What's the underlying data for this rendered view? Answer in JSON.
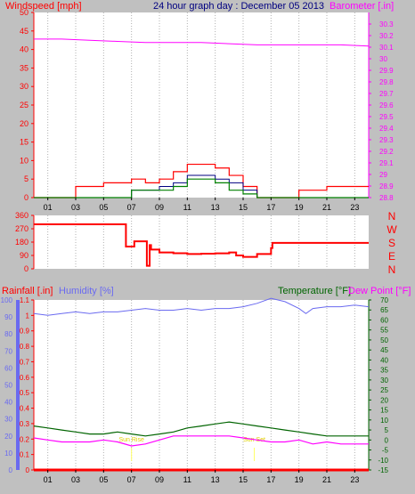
{
  "header": {
    "left_title": "Windspeed [mph]",
    "center_title": "24 hour graph day : December 05 2013",
    "right_title": "Barometer [.in]"
  },
  "colors": {
    "background": "#c0c0c0",
    "plot_bg": "#ffffff",
    "wind": "#ff0000",
    "wind_avg": "#000080",
    "wind_gust": "#008000",
    "barometer": "#ff00ff",
    "title_blue": "#000080",
    "grid": "#b0b0b0",
    "rain": "#ff0000",
    "humidity": "#6a6af0",
    "temperature": "#006400",
    "dewpoint": "#ff00ff",
    "marker": "#ffff66"
  },
  "time_ticks": [
    "01",
    "03",
    "05",
    "07",
    "09",
    "11",
    "13",
    "15",
    "17",
    "19",
    "21",
    "23"
  ],
  "time_ticks_bottom": [
    "01",
    "03",
    "05",
    "07",
    "09",
    "11",
    "13",
    "15",
    "17",
    "19",
    "21",
    "23"
  ],
  "chart_data": [
    {
      "type": "line",
      "name": "wind_and_barometer",
      "left_axis": {
        "label": "Windspeed [mph]",
        "ylim": [
          0,
          50
        ],
        "ticks": [
          "0",
          "5",
          "10",
          "15",
          "20",
          "25",
          "30",
          "35",
          "40",
          "45",
          "50"
        ]
      },
      "right_axis": {
        "label": "Barometer [.in]",
        "ylim": [
          28.8,
          30.4
        ],
        "ticks": [
          "28.8",
          "28.9",
          "29",
          "29.1",
          "29.2",
          "29.3",
          "29.4",
          "29.5",
          "29.6",
          "29.7",
          "29.8",
          "29.9",
          "30",
          "30.1",
          "30.2",
          "30.3"
        ]
      },
      "barometer": {
        "x": [
          0,
          2,
          4,
          6,
          8,
          10,
          12,
          14,
          16,
          18,
          20,
          22,
          24
        ],
        "y": [
          30.17,
          30.17,
          30.16,
          30.15,
          30.14,
          30.14,
          30.14,
          30.13,
          30.12,
          30.12,
          30.12,
          30.12,
          30.11
        ]
      },
      "wind_gust": {
        "x": [
          0,
          2.5,
          3,
          4,
          5,
          6,
          7,
          8,
          9,
          10,
          11,
          12,
          13,
          14,
          15,
          16,
          18,
          19,
          20,
          21,
          22,
          23,
          24
        ],
        "y": [
          0,
          0,
          3,
          3,
          4,
          4,
          5,
          4,
          5,
          7,
          9,
          9,
          8,
          6,
          3,
          0,
          0,
          2,
          2,
          3,
          3,
          3,
          3
        ]
      },
      "wind_avg": {
        "x": [
          0,
          6,
          7,
          8,
          9,
          10,
          11,
          12,
          13,
          14,
          15,
          16,
          24
        ],
        "y": [
          0,
          0,
          2,
          2,
          3,
          4,
          6,
          6,
          5,
          4,
          2,
          0,
          0
        ]
      },
      "wind_speed": {
        "x": [
          0,
          6.5,
          7,
          8,
          9,
          10,
          11,
          12,
          13,
          14,
          15,
          16,
          24
        ],
        "y": [
          0,
          0,
          2,
          2,
          2,
          3,
          5,
          5,
          4,
          2,
          1,
          0,
          0
        ]
      }
    },
    {
      "type": "line",
      "name": "wind_direction",
      "left_axis": {
        "ylim": [
          0,
          360
        ],
        "ticks": [
          "0",
          "90",
          "180",
          "270",
          "360"
        ]
      },
      "right_axis": {
        "ticks": [
          "N",
          "W",
          "S",
          "E",
          "N"
        ]
      },
      "direction": {
        "x": [
          0,
          6.5,
          6.6,
          7,
          7.2,
          8,
          8.1,
          8.3,
          8.4,
          9,
          10,
          11,
          12,
          13,
          14,
          14.5,
          15,
          16,
          17,
          17.1,
          24
        ],
        "y": [
          300,
          300,
          150,
          150,
          185,
          185,
          20,
          160,
          130,
          110,
          105,
          100,
          102,
          104,
          110,
          90,
          80,
          100,
          140,
          175,
          175
        ]
      }
    },
    {
      "type": "line",
      "name": "rain_humidity_temperature",
      "left_axis": {
        "label": "Rainfall [.in]",
        "ylim": [
          0,
          1.1
        ],
        "ticks": [
          "0",
          "0.1",
          "0.2",
          "0.3",
          "0.4",
          "0.5",
          "0.6",
          "0.7",
          "0.8",
          "0.9",
          "1",
          "1.1"
        ]
      },
      "humidity_axis": {
        "label": "Humidity [%]",
        "ylim": [
          0,
          100
        ],
        "ticks": [
          "0",
          "10",
          "20",
          "30",
          "40",
          "50",
          "60",
          "70",
          "80",
          "90",
          "100"
        ]
      },
      "right_axis": {
        "label": "Temperature [°F]",
        "label2": "Dew Point [°F]",
        "ylim": [
          -15,
          70
        ],
        "ticks": [
          "-15",
          "-10",
          "-5",
          "0",
          "5",
          "10",
          "15",
          "20",
          "25",
          "30",
          "35",
          "40",
          "45",
          "50",
          "55",
          "60",
          "65",
          "70"
        ]
      },
      "humidity": {
        "x": [
          0,
          1,
          2,
          3,
          4,
          5,
          6,
          7,
          8,
          9,
          10,
          11,
          12,
          13,
          14,
          15,
          16,
          17,
          18,
          19,
          19.5,
          20,
          21,
          22,
          23,
          24
        ],
        "y": [
          92,
          91,
          92,
          93,
          92,
          93,
          93,
          94,
          95,
          94,
          94,
          95,
          94,
          95,
          95,
          96,
          98,
          101,
          99,
          95,
          92,
          95,
          96,
          96,
          97,
          96
        ]
      },
      "temperature": {
        "x": [
          0,
          1,
          2,
          3,
          4,
          5,
          6,
          7,
          8,
          9,
          10,
          11,
          12,
          13,
          14,
          15,
          16,
          17,
          18,
          19,
          20,
          21,
          22,
          23,
          24
        ],
        "y": [
          7,
          6,
          5,
          4,
          3,
          3,
          4,
          3,
          2,
          3,
          4,
          6,
          7,
          8,
          9,
          8,
          7,
          6,
          5,
          4,
          3,
          2,
          2,
          2,
          2
        ]
      },
      "dewpoint": {
        "x": [
          0,
          1,
          2,
          3,
          4,
          5,
          6,
          7,
          8,
          9,
          10,
          11,
          12,
          13,
          14,
          15,
          16,
          17,
          18,
          19,
          20,
          21,
          22,
          23,
          24
        ],
        "y": [
          1,
          0,
          -1,
          -1,
          -1,
          0,
          -1,
          -3,
          -2,
          0,
          2,
          2,
          2,
          2,
          2,
          1,
          0,
          -1,
          -1,
          0,
          -2,
          -1,
          -2,
          -2,
          -2
        ]
      },
      "rainfall": {
        "x": [
          0,
          24
        ],
        "y": [
          0,
          0
        ]
      },
      "markers": [
        {
          "x": 7,
          "label": "Sun Rise"
        },
        {
          "x": 15.8,
          "label": "Sun Set"
        }
      ]
    }
  ]
}
